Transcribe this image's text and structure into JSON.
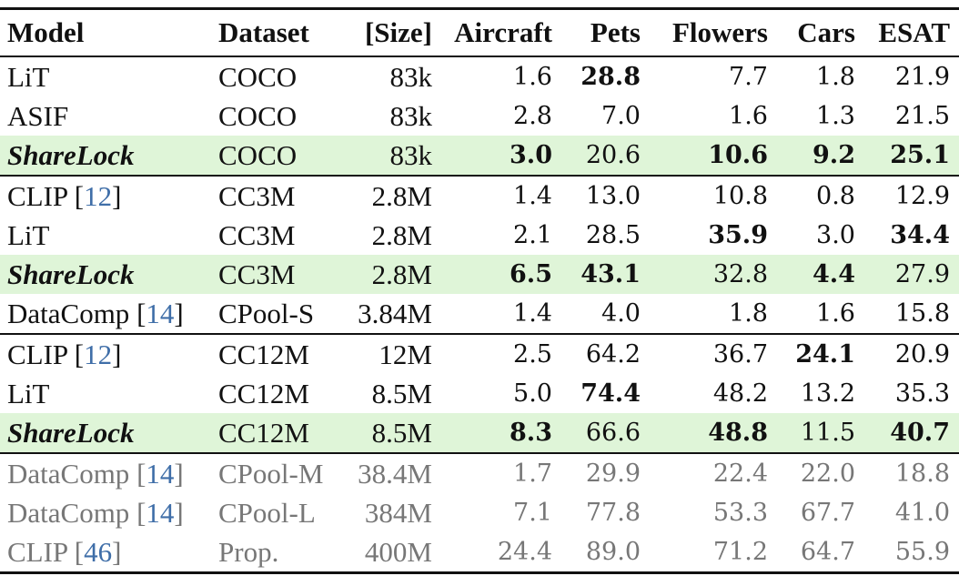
{
  "table": {
    "headers": [
      "Model",
      "Dataset",
      "[Size]",
      "Aircraft",
      "Pets",
      "Flowers",
      "Cars",
      "ESAT"
    ],
    "rows": [
      {
        "model": "LiT",
        "cite": "",
        "dataset": "COCO",
        "size": "83k",
        "values": [
          "1.6",
          "28.8",
          "7.7",
          "1.8",
          "21.9"
        ],
        "bold": [
          false,
          true,
          false,
          false,
          false
        ],
        "highlight": false,
        "reference": false,
        "group_start": false
      },
      {
        "model": "ASIF",
        "cite": "",
        "dataset": "COCO",
        "size": "83k",
        "values": [
          "2.8",
          "7.0",
          "1.6",
          "1.3",
          "21.5"
        ],
        "bold": [
          false,
          false,
          false,
          false,
          false
        ],
        "highlight": false,
        "reference": false,
        "group_start": false
      },
      {
        "model": "ShareLock",
        "cite": "",
        "dataset": "COCO",
        "size": "83k",
        "values": [
          "3.0",
          "20.6",
          "10.6",
          "9.2",
          "25.1"
        ],
        "bold": [
          true,
          false,
          true,
          true,
          true
        ],
        "highlight": true,
        "reference": false,
        "group_start": false
      },
      {
        "model": "CLIP",
        "cite": "12",
        "dataset": "CC3M",
        "size": "2.8M",
        "values": [
          "1.4",
          "13.0",
          "10.8",
          "0.8",
          "12.9"
        ],
        "bold": [
          false,
          false,
          false,
          false,
          false
        ],
        "highlight": false,
        "reference": false,
        "group_start": true
      },
      {
        "model": "LiT",
        "cite": "",
        "dataset": "CC3M",
        "size": "2.8M",
        "values": [
          "2.1",
          "28.5",
          "35.9",
          "3.0",
          "34.4"
        ],
        "bold": [
          false,
          false,
          true,
          false,
          true
        ],
        "highlight": false,
        "reference": false,
        "group_start": false
      },
      {
        "model": "ShareLock",
        "cite": "",
        "dataset": "CC3M",
        "size": "2.8M",
        "values": [
          "6.5",
          "43.1",
          "32.8",
          "4.4",
          "27.9"
        ],
        "bold": [
          true,
          true,
          false,
          true,
          false
        ],
        "highlight": true,
        "reference": false,
        "group_start": false
      },
      {
        "model": "DataComp",
        "cite": "14",
        "dataset": "CPool-S",
        "size": "3.84M",
        "values": [
          "1.4",
          "4.0",
          "1.8",
          "1.6",
          "15.8"
        ],
        "bold": [
          false,
          false,
          false,
          false,
          false
        ],
        "highlight": false,
        "reference": false,
        "group_start": false
      },
      {
        "model": "CLIP",
        "cite": "12",
        "dataset": "CC12M",
        "size": "12M",
        "values": [
          "2.5",
          "64.2",
          "36.7",
          "24.1",
          "20.9"
        ],
        "bold": [
          false,
          false,
          false,
          true,
          false
        ],
        "highlight": false,
        "reference": false,
        "group_start": true
      },
      {
        "model": "LiT",
        "cite": "",
        "dataset": "CC12M",
        "size": "8.5M",
        "values": [
          "5.0",
          "74.4",
          "48.2",
          "13.2",
          "35.3"
        ],
        "bold": [
          false,
          true,
          false,
          false,
          false
        ],
        "highlight": false,
        "reference": false,
        "group_start": false
      },
      {
        "model": "ShareLock",
        "cite": "",
        "dataset": "CC12M",
        "size": "8.5M",
        "values": [
          "8.3",
          "66.6",
          "48.8",
          "11.5",
          "40.7"
        ],
        "bold": [
          true,
          false,
          true,
          false,
          true
        ],
        "highlight": true,
        "reference": false,
        "group_start": false
      },
      {
        "model": "DataComp",
        "cite": "14",
        "dataset": "CPool-M",
        "size": "38.4M",
        "values": [
          "1.7",
          "29.9",
          "22.4",
          "22.0",
          "18.8"
        ],
        "bold": [
          false,
          false,
          false,
          false,
          false
        ],
        "highlight": false,
        "reference": true,
        "group_start": true
      },
      {
        "model": "DataComp",
        "cite": "14",
        "dataset": "CPool-L",
        "size": "384M",
        "values": [
          "7.1",
          "77.8",
          "53.3",
          "67.7",
          "41.0"
        ],
        "bold": [
          false,
          false,
          false,
          false,
          false
        ],
        "highlight": false,
        "reference": true,
        "group_start": false
      },
      {
        "model": "CLIP",
        "cite": "46",
        "dataset": "Prop.",
        "size": "400M",
        "values": [
          "24.4",
          "89.0",
          "71.2",
          "64.7",
          "55.9"
        ],
        "bold": [
          false,
          false,
          false,
          false,
          false
        ],
        "highlight": false,
        "reference": true,
        "group_start": false
      }
    ]
  },
  "colors": {
    "highlight": "#dff5d8",
    "citation": "#3f6ea8",
    "reference_text": "#777777",
    "rule": "#111111"
  }
}
